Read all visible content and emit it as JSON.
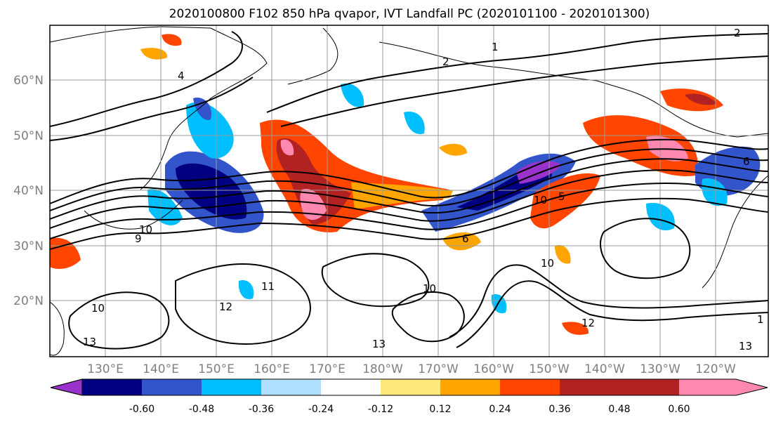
{
  "title": "2020100800 F102 850 hPa qvapor, IVT Landfall PC (2020101100 - 2020101300)",
  "map": {
    "lat_labels": [
      "60°N",
      "50°N",
      "40°N",
      "30°N",
      "20°N"
    ],
    "lon_labels": [
      "130°E",
      "140°E",
      "150°E",
      "160°E",
      "170°E",
      "180°W",
      "170°W",
      "160°W",
      "150°W",
      "140°W",
      "130°W",
      "120°W"
    ],
    "contour_labels": [
      "1",
      "2",
      "4",
      "10",
      "9",
      "12",
      "11",
      "10",
      "13",
      "10",
      "13",
      "6",
      "5",
      "10",
      "12",
      "10",
      "13",
      "1",
      "2",
      "6"
    ]
  },
  "colorbar": {
    "tick_labels": [
      "-0.60",
      "-0.48",
      "-0.36",
      "-0.24",
      "-0.12",
      "0.12",
      "0.24",
      "0.36",
      "0.48",
      "0.60"
    ],
    "colors": [
      "#9933cc",
      "#000080",
      "#3355cc",
      "#00bfff",
      "#b0e0ff",
      "#ffffff",
      "#ffe87a",
      "#ffa500",
      "#ff4500",
      "#b22222",
      "#ff88b0"
    ]
  }
}
